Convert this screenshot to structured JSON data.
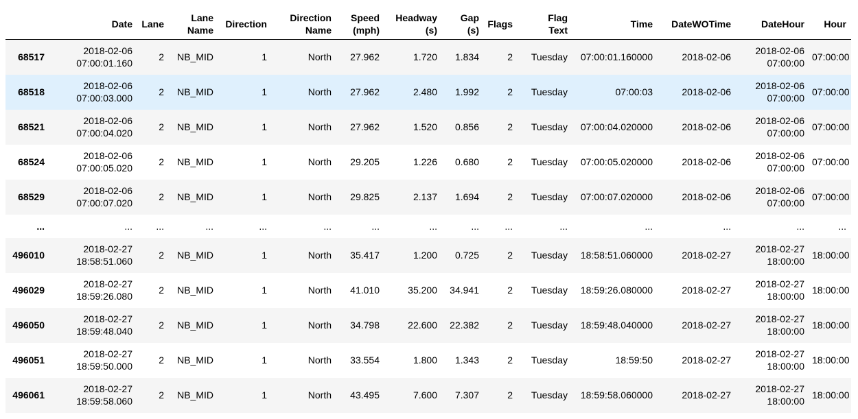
{
  "columns": {
    "index": "",
    "date": "Date",
    "lane": "Lane",
    "lane_name_1": "Lane",
    "lane_name_2": "Name",
    "direction": "Direction",
    "direction_name_1": "Direction",
    "direction_name_2": "Name",
    "speed_1": "Speed",
    "speed_2": "(mph)",
    "headway_1": "Headway",
    "headway_2": "(s)",
    "gap_1": "Gap",
    "gap_2": "(s)",
    "flags": "Flags",
    "flag_text_1": "Flag",
    "flag_text_2": "Text",
    "time": "Time",
    "datewotime": "DateWOTime",
    "datehour": "DateHour",
    "hour": "Hour"
  },
  "rows": [
    {
      "index": "68517",
      "date_d": "2018-02-06",
      "date_t": "07:00:01.160",
      "lane": "2",
      "lane_name": "NB_MID",
      "direction": "1",
      "direction_name": "North",
      "speed": "27.962",
      "headway": "1.720",
      "gap": "1.834",
      "flags": "2",
      "flag_text": "Tuesday",
      "time": "07:00:01.160000",
      "datewotime": "2018-02-06",
      "datehour_d": "2018-02-06",
      "datehour_t": "07:00:00",
      "hour": "07:00:00"
    },
    {
      "index": "68518",
      "date_d": "2018-02-06",
      "date_t": "07:00:03.000",
      "lane": "2",
      "lane_name": "NB_MID",
      "direction": "1",
      "direction_name": "North",
      "speed": "27.962",
      "headway": "2.480",
      "gap": "1.992",
      "flags": "2",
      "flag_text": "Tuesday",
      "time": "07:00:03",
      "datewotime": "2018-02-06",
      "datehour_d": "2018-02-06",
      "datehour_t": "07:00:00",
      "hour": "07:00:00"
    },
    {
      "index": "68521",
      "date_d": "2018-02-06",
      "date_t": "07:00:04.020",
      "lane": "2",
      "lane_name": "NB_MID",
      "direction": "1",
      "direction_name": "North",
      "speed": "27.962",
      "headway": "1.520",
      "gap": "0.856",
      "flags": "2",
      "flag_text": "Tuesday",
      "time": "07:00:04.020000",
      "datewotime": "2018-02-06",
      "datehour_d": "2018-02-06",
      "datehour_t": "07:00:00",
      "hour": "07:00:00"
    },
    {
      "index": "68524",
      "date_d": "2018-02-06",
      "date_t": "07:00:05.020",
      "lane": "2",
      "lane_name": "NB_MID",
      "direction": "1",
      "direction_name": "North",
      "speed": "29.205",
      "headway": "1.226",
      "gap": "0.680",
      "flags": "2",
      "flag_text": "Tuesday",
      "time": "07:00:05.020000",
      "datewotime": "2018-02-06",
      "datehour_d": "2018-02-06",
      "datehour_t": "07:00:00",
      "hour": "07:00:00"
    },
    {
      "index": "68529",
      "date_d": "2018-02-06",
      "date_t": "07:00:07.020",
      "lane": "2",
      "lane_name": "NB_MID",
      "direction": "1",
      "direction_name": "North",
      "speed": "29.825",
      "headway": "2.137",
      "gap": "1.694",
      "flags": "2",
      "flag_text": "Tuesday",
      "time": "07:00:07.020000",
      "datewotime": "2018-02-06",
      "datehour_d": "2018-02-06",
      "datehour_t": "07:00:00",
      "hour": "07:00:00"
    },
    {
      "index": "...",
      "date": "...",
      "lane": "...",
      "lane_name": "...",
      "direction": "...",
      "direction_name": "...",
      "speed": "...",
      "headway": "...",
      "gap": "...",
      "flags": "...",
      "flag_text": "...",
      "time": "...",
      "datewotime": "...",
      "datehour": "...",
      "hour": "..."
    },
    {
      "index": "496010",
      "date_d": "2018-02-27",
      "date_t": "18:58:51.060",
      "lane": "2",
      "lane_name": "NB_MID",
      "direction": "1",
      "direction_name": "North",
      "speed": "35.417",
      "headway": "1.200",
      "gap": "0.725",
      "flags": "2",
      "flag_text": "Tuesday",
      "time": "18:58:51.060000",
      "datewotime": "2018-02-27",
      "datehour_d": "2018-02-27",
      "datehour_t": "18:00:00",
      "hour": "18:00:00"
    },
    {
      "index": "496029",
      "date_d": "2018-02-27",
      "date_t": "18:59:26.080",
      "lane": "2",
      "lane_name": "NB_MID",
      "direction": "1",
      "direction_name": "North",
      "speed": "41.010",
      "headway": "35.200",
      "gap": "34.941",
      "flags": "2",
      "flag_text": "Tuesday",
      "time": "18:59:26.080000",
      "datewotime": "2018-02-27",
      "datehour_d": "2018-02-27",
      "datehour_t": "18:00:00",
      "hour": "18:00:00"
    },
    {
      "index": "496050",
      "date_d": "2018-02-27",
      "date_t": "18:59:48.040",
      "lane": "2",
      "lane_name": "NB_MID",
      "direction": "1",
      "direction_name": "North",
      "speed": "34.798",
      "headway": "22.600",
      "gap": "22.382",
      "flags": "2",
      "flag_text": "Tuesday",
      "time": "18:59:48.040000",
      "datewotime": "2018-02-27",
      "datehour_d": "2018-02-27",
      "datehour_t": "18:00:00",
      "hour": "18:00:00"
    },
    {
      "index": "496051",
      "date_d": "2018-02-27",
      "date_t": "18:59:50.000",
      "lane": "2",
      "lane_name": "NB_MID",
      "direction": "1",
      "direction_name": "North",
      "speed": "33.554",
      "headway": "1.800",
      "gap": "1.343",
      "flags": "2",
      "flag_text": "Tuesday",
      "time": "18:59:50",
      "datewotime": "2018-02-27",
      "datehour_d": "2018-02-27",
      "datehour_t": "18:00:00",
      "hour": "18:00:00"
    },
    {
      "index": "496061",
      "date_d": "2018-02-27",
      "date_t": "18:59:58.060",
      "lane": "2",
      "lane_name": "NB_MID",
      "direction": "1",
      "direction_name": "North",
      "speed": "43.495",
      "headway": "7.600",
      "gap": "7.307",
      "flags": "2",
      "flag_text": "Tuesday",
      "time": "18:59:58.060000",
      "datewotime": "2018-02-27",
      "datehour_d": "2018-02-27",
      "datehour_t": "18:00:00",
      "hour": "18:00:00"
    }
  ]
}
